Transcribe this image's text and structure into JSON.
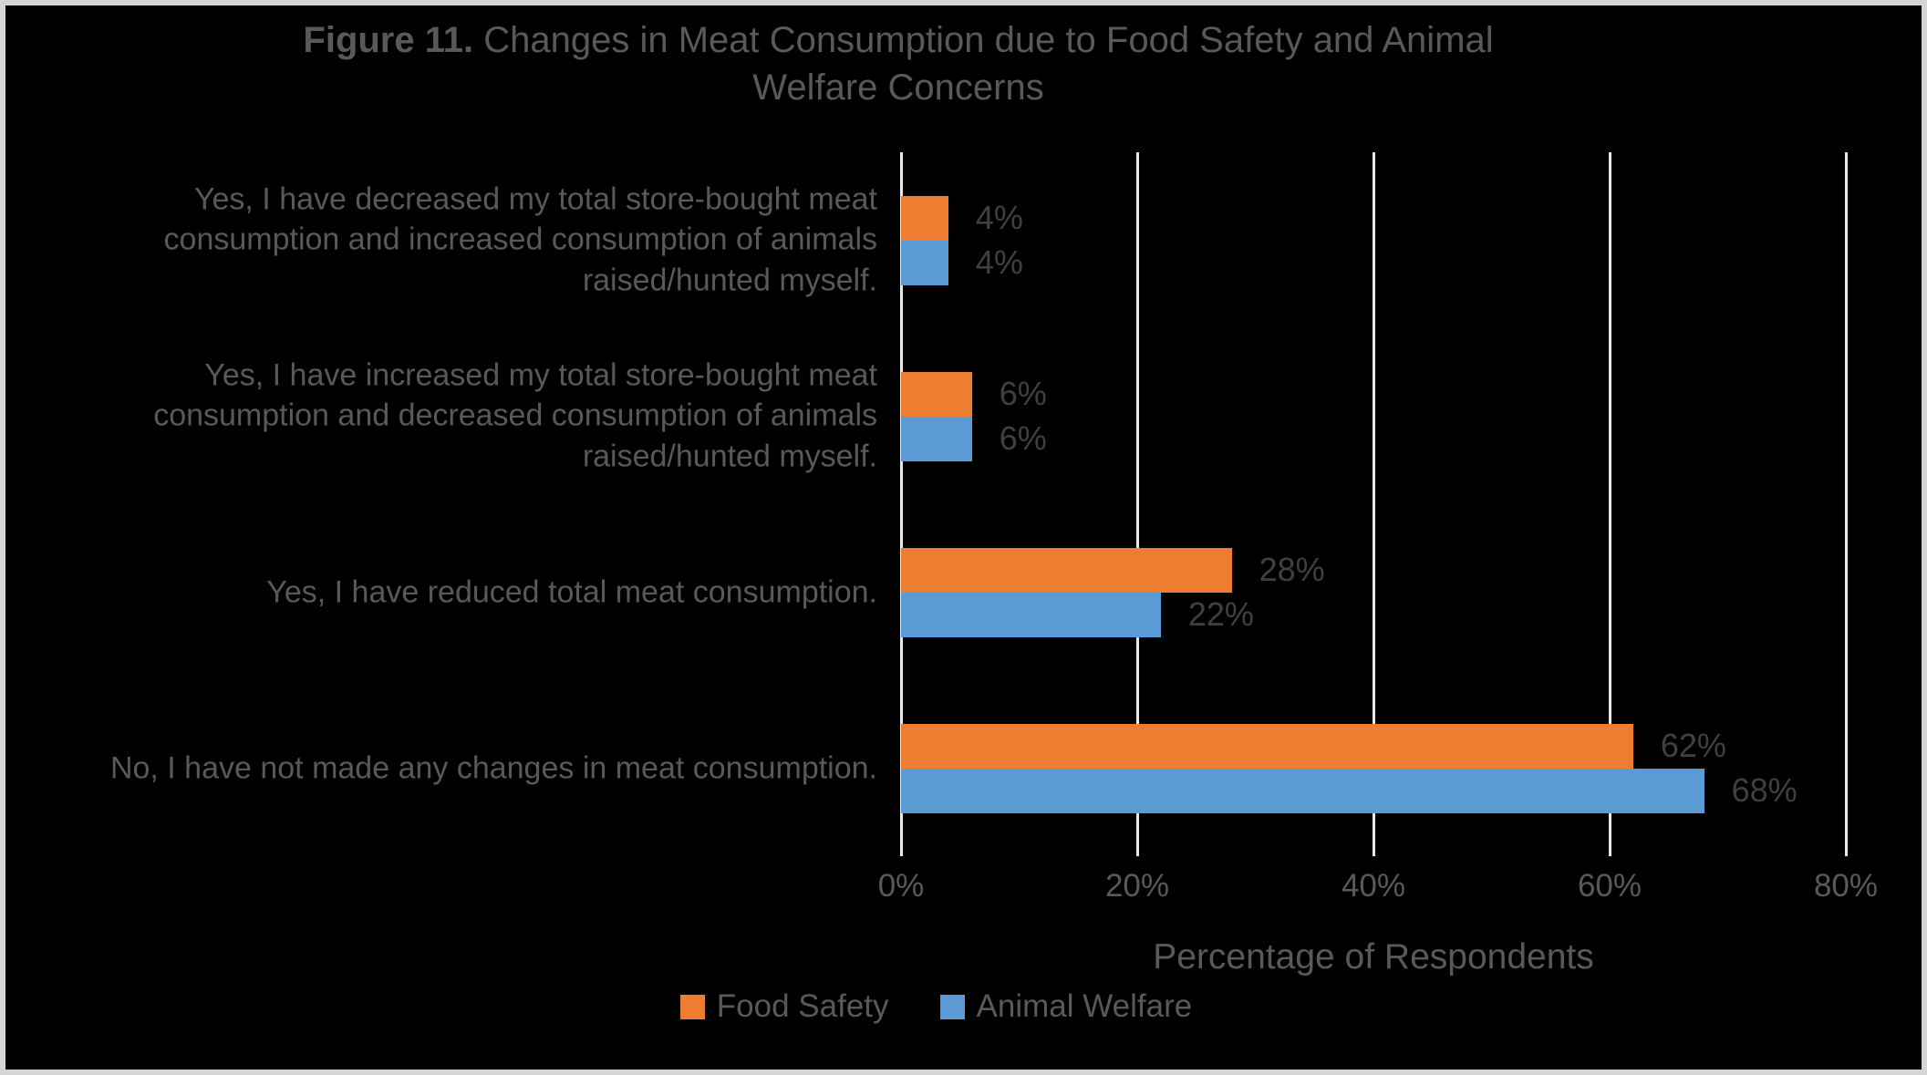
{
  "figure": {
    "title": {
      "bold": "Figure 11.",
      "line1_rest": " Changes in Meat Consumption due to Food Safety and Animal",
      "line2": "Welfare Concerns"
    }
  },
  "colors": {
    "background": "#000000",
    "border": "#D5D5D5",
    "gridline": "#E8E8E8",
    "title_text": "#595959",
    "label_text": "#595959",
    "data_label_text": "#404040",
    "food_safety": "#ED7D31",
    "animal_welfare": "#5B9BD5"
  },
  "chart_data": {
    "type": "bar",
    "orientation": "horizontal",
    "title": "Figure 11. Changes in Meat Consumption due to Food Safety and Animal Welfare Concerns",
    "xlabel": "Percentage of Respondents",
    "ylabel": "",
    "xlim": [
      0,
      80
    ],
    "xticks": [
      0,
      20,
      40,
      60,
      80
    ],
    "xtick_labels": [
      "0%",
      "20%",
      "40%",
      "60%",
      "80%"
    ],
    "grid": true,
    "legend_position": "bottom",
    "categories": [
      "Yes, I have decreased my total store-bought meat consumption and increased consumption of animals raised/hunted myself.",
      "Yes, I have increased my total store-bought meat consumption and decreased consumption of animals raised/hunted myself.",
      "Yes, I have reduced total meat consumption.",
      "No, I have not made any changes in meat consumption."
    ],
    "category_lines": [
      [
        "Yes, I have decreased my total store-bought meat",
        "consumption and increased consumption of animals",
        "raised/hunted myself."
      ],
      [
        "Yes, I have increased my total store-bought meat",
        "consumption and decreased consumption of animals",
        "raised/hunted myself."
      ],
      [
        "Yes, I have reduced total meat consumption."
      ],
      [
        "No, I have not made any changes in meat consumption."
      ]
    ],
    "series": [
      {
        "name": "Food Safety",
        "color": "#ED7D31",
        "values": [
          4,
          6,
          28,
          62
        ],
        "data_labels": [
          "4%",
          "6%",
          "28%",
          "62%"
        ]
      },
      {
        "name": "Animal Welfare",
        "color": "#5B9BD5",
        "values": [
          4,
          6,
          22,
          68
        ],
        "data_labels": [
          "4%",
          "6%",
          "22%",
          "68%"
        ]
      }
    ]
  }
}
